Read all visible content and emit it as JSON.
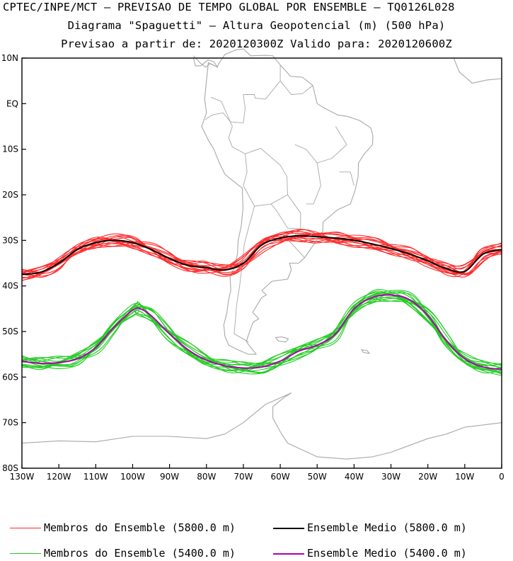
{
  "header": {
    "title_line1": "CPTEC/INPE/MCT — PREVISAO DE TEMPO GLOBAL POR ENSEMBLE — TQ0126L028",
    "title_line2": "Diagrama \"Spaguetti\" — Altura Geopotencial (m) (500 hPa)",
    "title_line3": "Previsao a partir de: 2020120300Z  Valido para: 2020120600Z"
  },
  "colors": {
    "member_5800": "#ff2a2a",
    "mean_5800": "#000000",
    "member_5400": "#22cc22",
    "mean_5400": "#b000b0",
    "coast": "#a8a8a8"
  },
  "chart_data": {
    "type": "line",
    "title": "Diagrama \"Spaguetti\" — Altura Geopotencial (m) (500 hPa)",
    "xlim": [
      -130,
      0
    ],
    "ylim": [
      -80,
      10
    ],
    "xticks": [
      {
        "v": -130,
        "label": "130W"
      },
      {
        "v": -120,
        "label": "120W"
      },
      {
        "v": -110,
        "label": "110W"
      },
      {
        "v": -100,
        "label": "100W"
      },
      {
        "v": -90,
        "label": "90W"
      },
      {
        "v": -80,
        "label": "80W"
      },
      {
        "v": -70,
        "label": "70W"
      },
      {
        "v": -60,
        "label": "60W"
      },
      {
        "v": -50,
        "label": "50W"
      },
      {
        "v": -40,
        "label": "40W"
      },
      {
        "v": -30,
        "label": "30W"
      },
      {
        "v": -20,
        "label": "20W"
      },
      {
        "v": -10,
        "label": "10W"
      },
      {
        "v": 0,
        "label": "0"
      }
    ],
    "yticks": [
      {
        "v": 10,
        "label": "10N"
      },
      {
        "v": 0,
        "label": "EQ"
      },
      {
        "v": -10,
        "label": "10S"
      },
      {
        "v": -20,
        "label": "20S"
      },
      {
        "v": -30,
        "label": "30S"
      },
      {
        "v": -40,
        "label": "40S"
      },
      {
        "v": -50,
        "label": "50S"
      },
      {
        "v": -60,
        "label": "60S"
      },
      {
        "v": -70,
        "label": "70S"
      },
      {
        "v": -80,
        "label": "80S"
      }
    ],
    "series": [
      {
        "name": "Ensemble Medio (5800.0 m)",
        "kind": "mean",
        "x": [
          -130,
          -125,
          -120,
          -115,
          -110,
          -105,
          -100,
          -95,
          -90,
          -85,
          -80,
          -75,
          -70,
          -65,
          -60,
          -55,
          -50,
          -45,
          -40,
          -35,
          -30,
          -25,
          -20,
          -15,
          -10,
          -5,
          0
        ],
        "y": [
          -37.5,
          -37,
          -35,
          -32,
          -30.5,
          -30,
          -30.5,
          -32,
          -34,
          -35.5,
          -36,
          -36.5,
          -35,
          -31,
          -29.5,
          -29,
          -29.2,
          -29.5,
          -30,
          -30.8,
          -31.8,
          -33,
          -34.5,
          -36.2,
          -36.8,
          -33,
          -32
        ]
      },
      {
        "name": "Ensemble Medio (5400.0 m)",
        "kind": "mean",
        "x": [
          -130,
          -125,
          -120,
          -115,
          -110,
          -105,
          -100,
          -98,
          -95,
          -90,
          -85,
          -80,
          -75,
          -70,
          -65,
          -60,
          -55,
          -50,
          -45,
          -40,
          -35,
          -30,
          -25,
          -20,
          -15,
          -10,
          -5,
          0
        ],
        "y": [
          -56.5,
          -57,
          -56.8,
          -56,
          -53.5,
          -49,
          -45.3,
          -45,
          -46.5,
          -50.5,
          -54,
          -56.3,
          -57.5,
          -58,
          -57.8,
          -56.5,
          -54.3,
          -53,
          -50.5,
          -45,
          -42.5,
          -42,
          -43,
          -46.5,
          -52,
          -56,
          -57.8,
          -58.3
        ]
      }
    ],
    "legend": [
      {
        "label": "Membros do Ensemble (5800.0 m)",
        "color": "#ff2a2a"
      },
      {
        "label": "Ensemble Medio (5800.0 m)",
        "color": "#000000"
      },
      {
        "label": "Membros do Ensemble (5400.0 m)",
        "color": "#22cc22"
      },
      {
        "label": "Ensemble Medio (5400.0 m)",
        "color": "#b000b0"
      }
    ],
    "legend_position": "bottom",
    "grid": false
  }
}
